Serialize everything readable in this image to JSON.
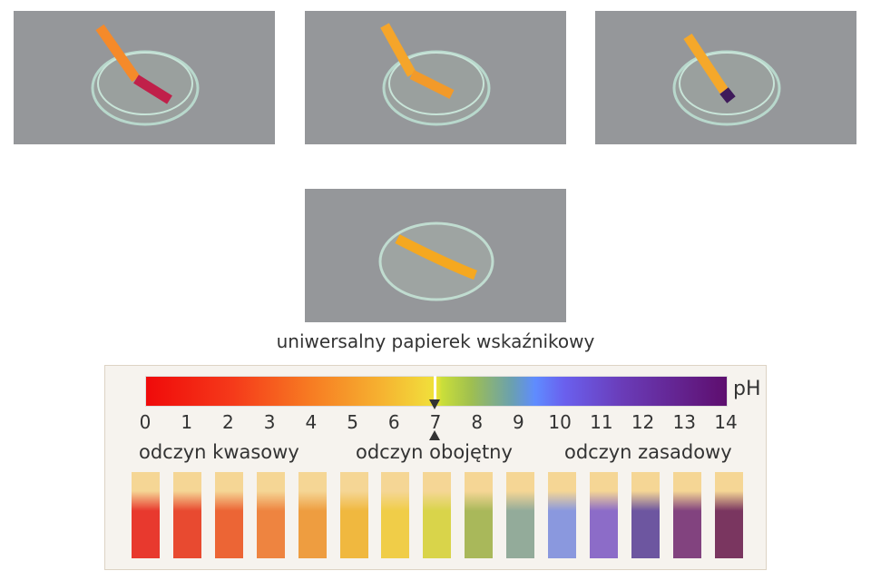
{
  "photos": [
    {
      "label": "acid",
      "strip_end_color": "#c0204a"
    },
    {
      "label": "neutral",
      "strip_end_color": "#f29a2a"
    },
    {
      "label": "base",
      "strip_end_color": "#3e1a5a"
    },
    {
      "label": "dry",
      "strip_end_color": "#f5a820"
    }
  ],
  "caption": "uniwersalny papierek wskaźnikowy",
  "scale": {
    "unit": "pH",
    "ticks": [
      "0",
      "1",
      "2",
      "3",
      "4",
      "5",
      "6",
      "7",
      "8",
      "9",
      "10",
      "11",
      "12",
      "13",
      "14"
    ],
    "neutral_marker": "7",
    "categories": {
      "acid": "odczyn kwasowy",
      "neutral": "odczyn obojętny",
      "base": "odczyn zasadowy"
    }
  },
  "strips": {
    "top_color": "#f5d695",
    "colors": [
      "#e8392e",
      "#e84a30",
      "#ec6535",
      "#ee8440",
      "#ee9d40",
      "#f0b83f",
      "#f0cd48",
      "#d9d44a",
      "#a9b85a",
      "#93ab9a",
      "#8a98de",
      "#8c6cc8",
      "#6d56a0",
      "#82437f",
      "#7a3660"
    ]
  }
}
